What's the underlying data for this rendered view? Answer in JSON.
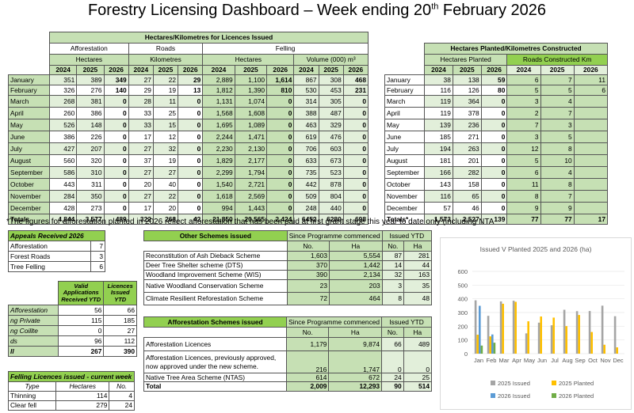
{
  "title": {
    "main": "Forestry Licensing Dashboard – Week ending 20",
    "sup": "th",
    "tail": " February 2026"
  },
  "licences": {
    "header": "Hectares/Kilometres for Licences Issued",
    "groups": [
      "Afforestation",
      "Roads",
      "Felling"
    ],
    "units": [
      "Hectares",
      "Kilometres",
      "Hectares",
      "Volume (000) m³"
    ],
    "years": [
      "2024",
      "2025",
      "2026"
    ],
    "rows": [
      [
        "January",
        "351",
        "389",
        "349",
        "27",
        "22",
        "29",
        "2,889",
        "1,100",
        "1,614",
        "867",
        "308",
        "468"
      ],
      [
        "February",
        "326",
        "276",
        "140",
        "29",
        "19",
        "13",
        "1,812",
        "1,390",
        "810",
        "530",
        "453",
        "231"
      ],
      [
        "March",
        "268",
        "381",
        "0",
        "28",
        "11",
        "0",
        "1,131",
        "1,074",
        "0",
        "314",
        "305",
        "0"
      ],
      [
        "April",
        "260",
        "386",
        "0",
        "33",
        "25",
        "0",
        "1,568",
        "1,608",
        "0",
        "388",
        "487",
        "0"
      ],
      [
        "May",
        "526",
        "148",
        "0",
        "33",
        "15",
        "0",
        "1,695",
        "1,089",
        "0",
        "463",
        "329",
        "0"
      ],
      [
        "June",
        "386",
        "226",
        "0",
        "17",
        "12",
        "0",
        "2,244",
        "1,471",
        "0",
        "619",
        "476",
        "0"
      ],
      [
        "July",
        "427",
        "207",
        "0",
        "27",
        "32",
        "0",
        "2,230",
        "2,130",
        "0",
        "706",
        "603",
        "0"
      ],
      [
        "August",
        "560",
        "320",
        "0",
        "37",
        "19",
        "0",
        "1,829",
        "2,177",
        "0",
        "633",
        "673",
        "0"
      ],
      [
        "September",
        "586",
        "310",
        "0",
        "27",
        "27",
        "0",
        "2,299",
        "1,794",
        "0",
        "735",
        "523",
        "0"
      ],
      [
        "October",
        "443",
        "311",
        "0",
        "20",
        "40",
        "0",
        "1,540",
        "2,721",
        "0",
        "442",
        "878",
        "0"
      ],
      [
        "November",
        "284",
        "350",
        "0",
        "27",
        "22",
        "0",
        "1,618",
        "2,569",
        "0",
        "509",
        "804",
        "0"
      ],
      [
        "December",
        "428",
        "273",
        "0",
        "17",
        "20",
        "0",
        "994",
        "1,443",
        "0",
        "248",
        "440",
        "0"
      ]
    ],
    "total": [
      "Totals",
      "4,844",
      "3,577",
      "489",
      "322",
      "263",
      "42",
      "21,850",
      "20,565",
      "2,424",
      "6452",
      "6280",
      "698"
    ]
  },
  "planted": {
    "header": "Hectares Planted/Kilometres Constructed",
    "sub_planted": "Hectares Planted",
    "sub_roads": "Roads Constructed Km",
    "years": [
      "2024",
      "2025",
      "2026"
    ],
    "rows": [
      [
        "January",
        "38",
        "138",
        "59",
        "6",
        "7",
        "11"
      ],
      [
        "February",
        "116",
        "126",
        "80",
        "5",
        "5",
        "6"
      ],
      [
        "March",
        "119",
        "364",
        "0",
        "3",
        "4",
        ""
      ],
      [
        "April",
        "119",
        "378",
        "0",
        "2",
        "7",
        ""
      ],
      [
        "May",
        "139",
        "236",
        "0",
        "7",
        "3",
        ""
      ],
      [
        "June",
        "185",
        "271",
        "0",
        "3",
        "5",
        ""
      ],
      [
        "July",
        "194",
        "263",
        "0",
        "12",
        "8",
        ""
      ],
      [
        "August",
        "181",
        "201",
        "0",
        "5",
        "10",
        ""
      ],
      [
        "September",
        "166",
        "282",
        "0",
        "6",
        "4",
        ""
      ],
      [
        "October",
        "143",
        "158",
        "0",
        "11",
        "8",
        ""
      ],
      [
        "November",
        "116",
        "65",
        "0",
        "8",
        "7",
        ""
      ],
      [
        "December",
        "57",
        "46",
        "0",
        "9",
        "9",
        ""
      ]
    ],
    "total": [
      "Totals*",
      "1,573",
      "2,527",
      "139",
      "77",
      "77",
      "17"
    ]
  },
  "footnote": "*The figures for afforestation planted in 2026 reflect afforestation that has been paid at first grant stage this year to date only (including NTA",
  "appeals": {
    "header": "Appeals Received 2026",
    "rows": [
      [
        "Afforestation",
        "7"
      ],
      [
        "Forest Roads",
        "3"
      ],
      [
        "Tree Felling",
        "6"
      ]
    ]
  },
  "valid": {
    "h1": "Valid Applications Received YTD",
    "h2": "Licences Issued YTD",
    "rows": [
      [
        "Afforestation",
        "56",
        "66"
      ],
      [
        "ng Private",
        "115",
        "185"
      ],
      [
        "ng Coillte",
        "0",
        "27"
      ],
      [
        "ds",
        "96",
        "112"
      ],
      [
        "ll",
        "267",
        "390"
      ]
    ]
  },
  "felling": {
    "header": "Felling Licences issued - current week",
    "col_type": "Type",
    "col_ha": "Hectares",
    "col_no": "No.",
    "rows": [
      [
        "Thinning",
        "114",
        "4"
      ],
      [
        "Clear fell",
        "279",
        "24"
      ]
    ]
  },
  "other": {
    "header": "Other Schemes issued",
    "since": "Since Programme commenced",
    "ytd": "Issued YTD",
    "no": "No.",
    "ha": "Ha",
    "rows": [
      [
        "Reconstitution of Ash Dieback Scheme",
        "1,603",
        "5,554",
        "87",
        "281"
      ],
      [
        "Deer Tree Shelter scheme (DTS)",
        "370",
        "1,442",
        "14",
        "44"
      ],
      [
        "Woodland Improvement Scheme (WIS)",
        "390",
        "2,134",
        "32",
        "163"
      ],
      [
        "Native Woodland Conservation Scheme",
        "23",
        "203",
        "3",
        "35"
      ],
      [
        "Climate Resilient Reforestation Scheme",
        "72",
        "464",
        "8",
        "48"
      ]
    ]
  },
  "aff": {
    "header": "Afforestation Schemes issued",
    "since": "Since Programme commenced",
    "ytd": "Issued YTD",
    "no": "No.",
    "ha": "Ha",
    "rows": [
      [
        "Afforestation Licences",
        "1,179",
        "9,874",
        "66",
        "489"
      ],
      [
        "Afforestation Licences, previously approved, now approved under the new scheme.",
        "216",
        "1,747",
        "0",
        "0"
      ],
      [
        "Native Tree Area Scheme (NTAS)",
        "614",
        "672",
        "24",
        "25"
      ]
    ],
    "total": [
      "Total",
      "2,009",
      "12,293",
      "90",
      "514"
    ]
  },
  "chart_data": {
    "type": "bar",
    "title": "Issued V Planted 2025 and 2026 (ha)",
    "categories": [
      "Jan",
      "Feb",
      "Mar",
      "Apr",
      "May",
      "Jun",
      "Jul",
      "Aug",
      "Sep",
      "Oct",
      "Nov",
      "Dec"
    ],
    "ylim": [
      0,
      600
    ],
    "yticks": [
      "0",
      "100",
      "200",
      "300",
      "400",
      "500",
      "600"
    ],
    "series": [
      {
        "name": "2025 Issued",
        "color": "#a5a5a5",
        "values": [
          389,
          276,
          381,
          386,
          148,
          226,
          207,
          320,
          310,
          311,
          350,
          273
        ]
      },
      {
        "name": "2025 Planted",
        "color": "#ffc000",
        "values": [
          138,
          126,
          364,
          378,
          236,
          271,
          263,
          201,
          282,
          158,
          65,
          46
        ]
      },
      {
        "name": "2026 Issued",
        "color": "#5b9bd5",
        "values": [
          349,
          140,
          0,
          0,
          0,
          0,
          0,
          0,
          0,
          0,
          0,
          0
        ]
      },
      {
        "name": "2026 Planted",
        "color": "#70ad47",
        "values": [
          59,
          80,
          0,
          0,
          0,
          0,
          0,
          0,
          0,
          0,
          0,
          0
        ]
      }
    ]
  }
}
